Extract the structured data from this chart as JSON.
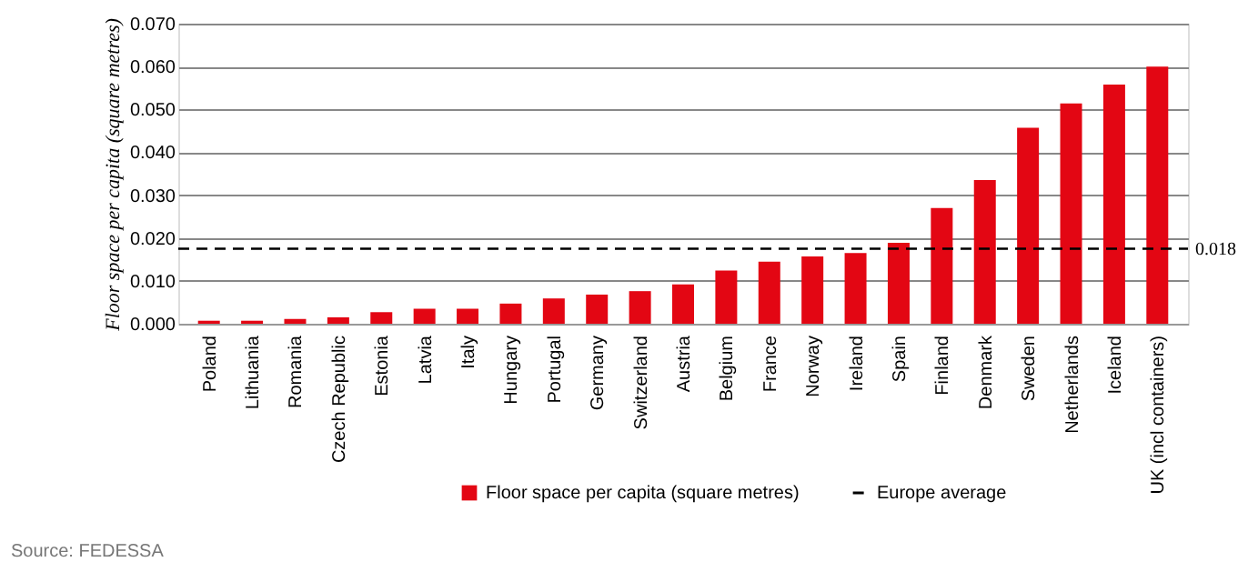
{
  "chart_data": {
    "type": "bar",
    "categories": [
      "Poland",
      "Lithuania",
      "Romania",
      "Czech Republic",
      "Estonia",
      "Latvia",
      "Italy",
      "Hungary",
      "Portugal",
      "Germany",
      "Switzerland",
      "Austria",
      "Belgium",
      "France",
      "Norway",
      "Ireland",
      "Spain",
      "Finland",
      "Denmark",
      "Sweden",
      "Netherlands",
      "Iceland",
      "UK (incl containers)"
    ],
    "series": [
      {
        "name": "Floor space per capita (square metres)",
        "color": "#e30613",
        "values": [
          0.0007,
          0.0007,
          0.0011,
          0.0015,
          0.0027,
          0.0035,
          0.0035,
          0.0047,
          0.0059,
          0.0068,
          0.0076,
          0.0092,
          0.0124,
          0.0145,
          0.0157,
          0.0165,
          0.0189,
          0.027,
          0.0335,
          0.0457,
          0.0514,
          0.0558,
          0.06
        ]
      }
    ],
    "ylabel": "Floor space per capita (square metres)",
    "ylim": [
      0,
      0.07
    ],
    "yticks": [
      {
        "value": 0,
        "label": "0.000"
      },
      {
        "value": 0.01,
        "label": "0.010"
      },
      {
        "value": 0.02,
        "label": "0.020"
      },
      {
        "value": 0.03,
        "label": "0.030"
      },
      {
        "value": 0.04,
        "label": "0.040"
      },
      {
        "value": 0.05,
        "label": "0.050"
      },
      {
        "value": 0.06,
        "label": "0.060"
      },
      {
        "value": 0.07,
        "label": "0.070"
      }
    ],
    "ref_lines": [
      {
        "axis": "y",
        "value": 0.0175,
        "label": "Europe average",
        "color": "#000000",
        "line_style": "dashed"
      }
    ],
    "annotations": [
      "0.018",
      "Source: FEDESSA"
    ],
    "grid": "y",
    "legend": "bottom"
  }
}
